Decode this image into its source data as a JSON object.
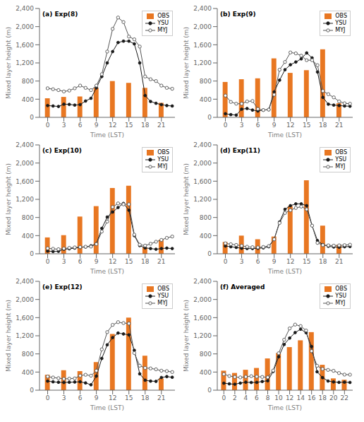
{
  "chart_data": [
    {
      "type": "bar",
      "title": "(a) Exp(8)",
      "xlabel": "Time (LST)",
      "ylabel": "Mixed layer height (m)",
      "series": [
        {
          "name": "OBS",
          "type": "bar",
          "color": "#E87722",
          "x": [
            0,
            3,
            6,
            9,
            12,
            15,
            18,
            21
          ],
          "values": [
            420,
            450,
            460,
            650,
            800,
            760,
            650,
            320
          ]
        },
        {
          "name": "YSU",
          "type": "line",
          "color": "#1a1a1a",
          "marker": "circle",
          "x": [
            0,
            1,
            2,
            3,
            4,
            5,
            6,
            7,
            8,
            9,
            10,
            11,
            12,
            13,
            14,
            15,
            16,
            17,
            18,
            19,
            20,
            21,
            22,
            23
          ],
          "values": [
            260,
            250,
            240,
            290,
            285,
            270,
            280,
            360,
            420,
            650,
            900,
            1200,
            1450,
            1650,
            1680,
            1680,
            1620,
            1200,
            480,
            350,
            310,
            280,
            260,
            250
          ]
        },
        {
          "name": "MYJ",
          "type": "line",
          "color": "#555555",
          "marker": "open circle",
          "x": [
            0,
            1,
            2,
            3,
            4,
            5,
            6,
            7,
            8,
            9,
            10,
            11,
            12,
            13,
            14,
            15,
            16,
            17,
            18,
            19,
            20,
            21,
            22,
            23
          ],
          "values": [
            640,
            620,
            600,
            570,
            590,
            640,
            700,
            650,
            600,
            700,
            950,
            1450,
            1950,
            2200,
            2100,
            1780,
            1720,
            1560,
            900,
            840,
            800,
            700,
            650,
            630
          ]
        }
      ],
      "xlim": [
        -1.5,
        23.5
      ],
      "xticks": [
        0,
        3,
        6,
        9,
        12,
        15,
        18,
        21
      ],
      "ylim": [
        0,
        2400
      ],
      "yticks": [
        0,
        400,
        800,
        {
          "value": 1200,
          "label": "1,200"
        },
        {
          "value": 1600,
          "label": "1,600"
        },
        {
          "value": 2000,
          "label": "2,000"
        },
        {
          "value": 2400,
          "label": "2,400"
        }
      ],
      "legend": "upper right",
      "grid": false
    },
    {
      "type": "bar",
      "title": "(b) Exp(9)",
      "xlabel": "Time (LST)",
      "ylabel": "Mixed layer height (m)",
      "series": [
        {
          "name": "OBS",
          "type": "bar",
          "color": "#E87722",
          "x": [
            0,
            3,
            6,
            9,
            12,
            15,
            18,
            21
          ],
          "values": [
            780,
            840,
            860,
            1300,
            980,
            1040,
            1500,
            310
          ]
        },
        {
          "name": "YSU",
          "type": "line",
          "color": "#1a1a1a",
          "marker": "circle",
          "x": [
            0,
            1,
            2,
            3,
            4,
            5,
            6,
            7,
            8,
            9,
            10,
            11,
            12,
            13,
            14,
            15,
            16,
            17,
            18,
            19,
            20,
            21,
            22,
            23
          ],
          "values": [
            80,
            60,
            50,
            180,
            195,
            160,
            140,
            160,
            170,
            560,
            820,
            1050,
            1160,
            1220,
            1290,
            1420,
            1310,
            1000,
            440,
            290,
            270,
            260,
            250,
            245
          ]
        },
        {
          "name": "MYJ",
          "type": "line",
          "color": "#555555",
          "marker": "open circle",
          "x": [
            0,
            1,
            2,
            3,
            4,
            5,
            6,
            7,
            8,
            9,
            10,
            11,
            12,
            13,
            14,
            15,
            16,
            17,
            18,
            19,
            20,
            21,
            22,
            23
          ],
          "values": [
            480,
            340,
            300,
            300,
            350,
            360,
            185,
            160,
            170,
            500,
            1050,
            1220,
            1430,
            1410,
            1360,
            1260,
            1260,
            1150,
            580,
            510,
            440,
            350,
            310,
            300
          ]
        }
      ],
      "xlim": [
        -1.5,
        23.5
      ],
      "xticks": [
        0,
        3,
        6,
        9,
        12,
        15,
        18,
        21
      ],
      "ylim": [
        0,
        2400
      ],
      "yticks": [
        0,
        400,
        800,
        {
          "value": 1200,
          "label": "1,200"
        },
        {
          "value": 1600,
          "label": "1,600"
        },
        {
          "value": 2000,
          "label": "2,000"
        },
        {
          "value": 2400,
          "label": "2,400"
        }
      ],
      "legend": "upper right",
      "grid": false
    },
    {
      "type": "bar",
      "title": "(c) Exp(10)",
      "xlabel": "Time (LST)",
      "ylabel": "Mixed layer height (m)",
      "series": [
        {
          "name": "OBS",
          "type": "bar",
          "color": "#E87722",
          "x": [
            0,
            3,
            6,
            9,
            12,
            15,
            18,
            21
          ],
          "values": [
            360,
            410,
            820,
            1050,
            1450,
            1500,
            140,
            310
          ]
        },
        {
          "name": "YSU",
          "type": "line",
          "color": "#1a1a1a",
          "marker": "circle",
          "x": [
            0,
            1,
            2,
            3,
            4,
            5,
            6,
            7,
            8,
            9,
            10,
            11,
            12,
            13,
            14,
            15,
            16,
            17,
            18,
            19,
            20,
            21,
            22,
            23
          ],
          "values": [
            60,
            50,
            55,
            100,
            110,
            125,
            140,
            150,
            175,
            220,
            560,
            810,
            920,
            1020,
            1110,
            960,
            400,
            180,
            130,
            115,
            100,
            115,
            125,
            115
          ]
        },
        {
          "name": "MYJ",
          "type": "line",
          "color": "#555555",
          "marker": "open circle",
          "x": [
            0,
            1,
            2,
            3,
            4,
            5,
            6,
            7,
            8,
            9,
            10,
            11,
            12,
            13,
            14,
            15,
            16,
            17,
            18,
            19,
            20,
            21,
            22,
            23
          ],
          "values": [
            120,
            110,
            100,
            115,
            130,
            140,
            148,
            155,
            158,
            215,
            490,
            710,
            1030,
            1110,
            1090,
            1090,
            420,
            200,
            180,
            220,
            265,
            305,
            350,
            380
          ]
        }
      ],
      "xlim": [
        -1.5,
        23.5
      ],
      "xticks": [
        0,
        3,
        6,
        9,
        12,
        15,
        18,
        21
      ],
      "ylim": [
        0,
        2400
      ],
      "yticks": [
        0,
        400,
        800,
        {
          "value": 1200,
          "label": "1,200"
        },
        {
          "value": 1600,
          "label": "1,600"
        },
        {
          "value": 2000,
          "label": "2,000"
        },
        {
          "value": 2400,
          "label": "2,400"
        }
      ],
      "legend": "upper right",
      "grid": false
    },
    {
      "type": "bar",
      "title": "(d) Exp(11)",
      "xlabel": "Time (LST)",
      "ylabel": "Mixed layer height (m)",
      "series": [
        {
          "name": "OBS",
          "type": "bar",
          "color": "#E87722",
          "x": [
            0,
            3,
            6,
            9,
            12,
            15,
            18,
            21
          ],
          "values": [
            260,
            400,
            320,
            380,
            1050,
            1620,
            620,
            200
          ]
        },
        {
          "name": "YSU",
          "type": "line",
          "color": "#1a1a1a",
          "marker": "circle",
          "x": [
            0,
            1,
            2,
            3,
            4,
            5,
            6,
            7,
            8,
            9,
            10,
            11,
            12,
            13,
            14,
            15,
            16,
            17,
            18,
            19,
            20,
            21,
            22,
            23
          ],
          "values": [
            170,
            155,
            140,
            120,
            115,
            115,
            120,
            130,
            155,
            320,
            700,
            980,
            1060,
            1100,
            1100,
            1060,
            620,
            290,
            200,
            165,
            150,
            145,
            155,
            160
          ]
        },
        {
          "name": "MYJ",
          "type": "line",
          "color": "#555555",
          "marker": "open circle",
          "x": [
            0,
            1,
            2,
            3,
            4,
            5,
            6,
            7,
            8,
            9,
            10,
            11,
            12,
            13,
            14,
            15,
            16,
            17,
            18,
            19,
            20,
            21,
            22,
            23
          ],
          "values": [
            230,
            210,
            195,
            175,
            155,
            145,
            140,
            150,
            170,
            320,
            680,
            900,
            960,
            1010,
            1040,
            980,
            620,
            240,
            190,
            185,
            180,
            185,
            190,
            200
          ]
        }
      ],
      "xlim": [
        -1.5,
        23.5
      ],
      "xticks": [
        0,
        3,
        6,
        9,
        12,
        15,
        18,
        21
      ],
      "ylim": [
        0,
        2400
      ],
      "yticks": [
        0,
        400,
        800,
        {
          "value": 1200,
          "label": "1,200"
        },
        {
          "value": 1600,
          "label": "1,600"
        },
        {
          "value": 2000,
          "label": "2,000"
        },
        {
          "value": 2400,
          "label": "2,400"
        }
      ],
      "legend": "upper right",
      "grid": false
    },
    {
      "type": "bar",
      "title": "(e) Exp(12)",
      "xlabel": "Time (LST)",
      "ylabel": "Mixed layer height (m)",
      "series": [
        {
          "name": "OBS",
          "type": "bar",
          "color": "#E87722",
          "x": [
            0,
            3,
            6,
            9,
            12,
            15,
            18,
            21
          ],
          "values": [
            340,
            440,
            420,
            620,
            1240,
            1600,
            760,
            260
          ]
        },
        {
          "name": "YSU",
          "type": "line",
          "color": "#1a1a1a",
          "marker": "circle",
          "x": [
            0,
            1,
            2,
            3,
            4,
            5,
            6,
            7,
            8,
            9,
            10,
            11,
            12,
            13,
            14,
            15,
            16,
            17,
            18,
            19,
            20,
            21,
            22,
            23
          ],
          "values": [
            200,
            185,
            175,
            170,
            175,
            180,
            185,
            160,
            120,
            310,
            700,
            1000,
            1160,
            1260,
            1240,
            1220,
            880,
            360,
            220,
            200,
            195,
            280,
            300,
            285
          ]
        },
        {
          "name": "MYJ",
          "type": "line",
          "color": "#555555",
          "marker": "open circle",
          "x": [
            0,
            1,
            2,
            3,
            4,
            5,
            6,
            7,
            8,
            9,
            10,
            11,
            12,
            13,
            14,
            15,
            16,
            17,
            18,
            19,
            20,
            21,
            22,
            23
          ],
          "values": [
            300,
            280,
            265,
            250,
            255,
            260,
            320,
            340,
            320,
            430,
            900,
            1280,
            1440,
            1500,
            1480,
            1470,
            820,
            540,
            490,
            480,
            460,
            430,
            420,
            400
          ]
        }
      ],
      "xlim": [
        -1.5,
        23.5
      ],
      "xticks": [
        0,
        3,
        6,
        9,
        12,
        15,
        18,
        21
      ],
      "ylim": [
        0,
        2400
      ],
      "yticks": [
        0,
        400,
        800,
        {
          "value": 1200,
          "label": "1,200"
        },
        {
          "value": 1600,
          "label": "1,600"
        },
        {
          "value": 2000,
          "label": "2,000"
        },
        {
          "value": 2400,
          "label": "2,400"
        }
      ],
      "legend": "upper right",
      "grid": false
    },
    {
      "type": "bar",
      "title": "(f) Averaged",
      "xlabel": "Time (LST)",
      "ylabel": "Mixed layer height (m)",
      "series": [
        {
          "name": "OBS",
          "type": "bar",
          "color": "#E87722",
          "x": [
            0,
            2,
            4,
            6,
            8,
            10,
            12,
            14,
            16,
            18,
            20,
            22
          ],
          "values": [
            430,
            380,
            450,
            490,
            700,
            820,
            950,
            1100,
            1280,
            560,
            260,
            230
          ]
        },
        {
          "name": "YSU",
          "type": "line",
          "color": "#1a1a1a",
          "marker": "circle",
          "x": [
            0,
            1,
            2,
            3,
            4,
            5,
            6,
            7,
            8,
            9,
            10,
            11,
            12,
            13,
            14,
            15,
            16,
            17,
            18,
            19,
            20,
            21,
            22,
            23
          ],
          "values": [
            154,
            140,
            132,
            156,
            176,
            170,
            172,
            192,
            208,
            412,
            736,
            1008,
            1149,
            1270,
            1345,
            1268,
            962,
            406,
            277,
            202,
            182,
            173,
            177,
            171
          ]
        },
        {
          "name": "MYJ",
          "type": "line",
          "color": "#555555",
          "marker": "open circle",
          "x": [
            0,
            1,
            2,
            3,
            4,
            5,
            6,
            7,
            8,
            9,
            10,
            11,
            12,
            13,
            14,
            15,
            16,
            17,
            18,
            19,
            20,
            21,
            22,
            23
          ],
          "values": [
            354,
            312,
            292,
            282,
            296,
            309,
            299,
            292,
            284,
            433,
            814,
            1112,
            1362,
            1446,
            1414,
            1316,
            862,
            538,
            468,
            447,
            427,
            378,
            344,
            342
          ]
        }
      ],
      "xlim": [
        -1.2,
        23.5
      ],
      "xticks": [
        0,
        2,
        4,
        6,
        8,
        10,
        12,
        14,
        16,
        18,
        20,
        22
      ],
      "ylim": [
        0,
        2400
      ],
      "yticks": [
        0,
        400,
        800,
        {
          "value": 1200,
          "label": "1,200"
        },
        {
          "value": 1600,
          "label": "1,600"
        },
        {
          "value": 2000,
          "label": "2,000"
        },
        {
          "value": 2400,
          "label": "2,400"
        }
      ],
      "legend": "upper right",
      "grid": false
    }
  ]
}
